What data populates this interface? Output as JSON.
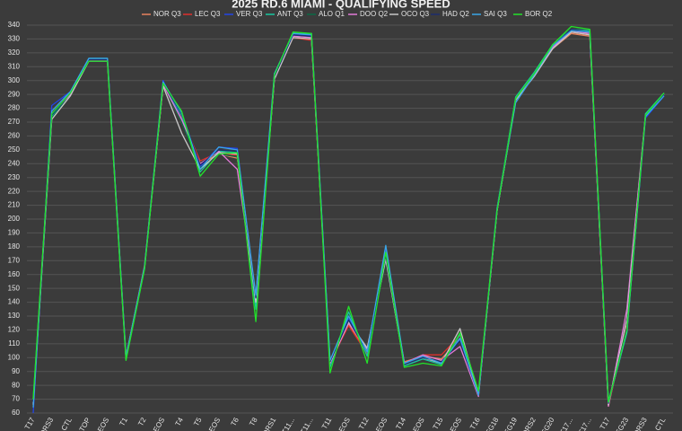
{
  "chart_data": {
    "type": "line",
    "title": "2025 RD.6 MIAMI - QUALIFYING SPEED",
    "categories": [
      "T17",
      "DRS3",
      "CTL",
      "TOP",
      "EOS",
      "T1",
      "T2",
      "EOS",
      "T4",
      "T5",
      "EOS",
      "T6",
      "T8",
      "DRS1",
      "T11...",
      "T11...",
      "T11",
      "EOS",
      "T12",
      "EOS",
      "T14",
      "EOS",
      "T15",
      "EOS",
      "T16",
      "EG18",
      "EG19",
      "DRS2",
      "EG20",
      "T17...",
      "T17...",
      "T17",
      "EG23",
      "DRS3",
      "CTL"
    ],
    "series": [
      {
        "name": "NOR Q3",
        "color": "#e8835e",
        "values": [
          66,
          276,
          291,
          315,
          315,
          101,
          166,
          297,
          270,
          240,
          247,
          244,
          140,
          302,
          331,
          330,
          96,
          124,
          104,
          172,
          97,
          101,
          99,
          114,
          73,
          206,
          285,
          304,
          323,
          334,
          332,
          65,
          124,
          274,
          290
        ]
      },
      {
        "name": "LEC Q3",
        "color": "#e0302c",
        "values": [
          68,
          275,
          290,
          315,
          315,
          100,
          167,
          296,
          273,
          242,
          248,
          246,
          138,
          303,
          331,
          329,
          97,
          123,
          103,
          173,
          96,
          102,
          102,
          116,
          74,
          207,
          286,
          305,
          324,
          335,
          333,
          66,
          122,
          275,
          290
        ]
      },
      {
        "name": "VER Q3",
        "color": "#2244e8",
        "values": [
          60,
          282,
          292,
          316,
          316,
          100,
          165,
          300,
          272,
          238,
          252,
          251,
          142,
          304,
          333,
          333,
          96,
          128,
          104,
          178,
          95,
          101,
          96,
          113,
          74,
          206,
          286,
          305,
          326,
          336,
          335,
          68,
          120,
          273,
          289
        ]
      },
      {
        "name": "ANT Q3",
        "color": "#18c8a0",
        "values": [
          70,
          274,
          291,
          316,
          316,
          101,
          166,
          298,
          275,
          234,
          249,
          248,
          135,
          304,
          334,
          334,
          93,
          133,
          101,
          176,
          94,
          99,
          95,
          117,
          74,
          208,
          288,
          306,
          326,
          337,
          336,
          68,
          118,
          276,
          291
        ]
      },
      {
        "name": "ALO Q1",
        "color": "#0b6b45",
        "values": [
          69,
          273,
          290,
          314,
          314,
          99,
          164,
          297,
          270,
          237,
          247,
          245,
          141,
          302,
          332,
          331,
          98,
          127,
          105,
          170,
          96,
          100,
          97,
          114,
          73,
          207,
          285,
          304,
          325,
          336,
          334,
          67,
          121,
          275,
          290
        ]
      },
      {
        "name": "DOO Q2",
        "color": "#e27ad8",
        "values": [
          67,
          276,
          290,
          315,
          315,
          100,
          166,
          297,
          272,
          240,
          249,
          236,
          144,
          302,
          332,
          331,
          96,
          125,
          106,
          172,
          96,
          102,
          98,
          108,
          72,
          206,
          286,
          304,
          324,
          336,
          334,
          65,
          135,
          275,
          290
        ]
      },
      {
        "name": "OCO Q3",
        "color": "#c8c8c8",
        "values": [
          66,
          272,
          289,
          314,
          314,
          99,
          165,
          296,
          262,
          236,
          248,
          247,
          140,
          301,
          331,
          330,
          97,
          126,
          107,
          171,
          95,
          100,
          96,
          121,
          73,
          206,
          286,
          303,
          323,
          335,
          333,
          66,
          128,
          274,
          290
        ]
      },
      {
        "name": "HAD Q2",
        "color": "#1c2c6e",
        "values": [
          68,
          275,
          291,
          315,
          315,
          100,
          166,
          298,
          276,
          239,
          250,
          249,
          143,
          303,
          333,
          332,
          97,
          127,
          104,
          174,
          95,
          100,
          97,
          112,
          73,
          207,
          287,
          305,
          325,
          337,
          335,
          67,
          122,
          274,
          290
        ]
      },
      {
        "name": "SAI Q3",
        "color": "#3aa6e8",
        "values": [
          64,
          278,
          292,
          316,
          316,
          100,
          166,
          299,
          277,
          236,
          252,
          250,
          145,
          305,
          334,
          333,
          98,
          130,
          104,
          181,
          96,
          101,
          96,
          114,
          73,
          207,
          284,
          304,
          325,
          336,
          335,
          68,
          119,
          274,
          289
        ]
      },
      {
        "name": "BOR Q2",
        "color": "#22e32a",
        "values": [
          70,
          276,
          291,
          314,
          314,
          98,
          164,
          298,
          278,
          231,
          247,
          248,
          126,
          304,
          335,
          334,
          89,
          137,
          96,
          176,
          93,
          96,
          94,
          118,
          76,
          206,
          287,
          305,
          326,
          339,
          337,
          68,
          120,
          275,
          291
        ]
      }
    ],
    "ylim": [
      60,
      340
    ],
    "yticks": [
      60,
      70,
      80,
      90,
      100,
      110,
      120,
      130,
      140,
      150,
      160,
      170,
      180,
      190,
      200,
      210,
      220,
      230,
      240,
      250,
      260,
      270,
      280,
      290,
      300,
      310,
      320,
      330,
      340
    ],
    "grid": true,
    "legend": "top"
  }
}
